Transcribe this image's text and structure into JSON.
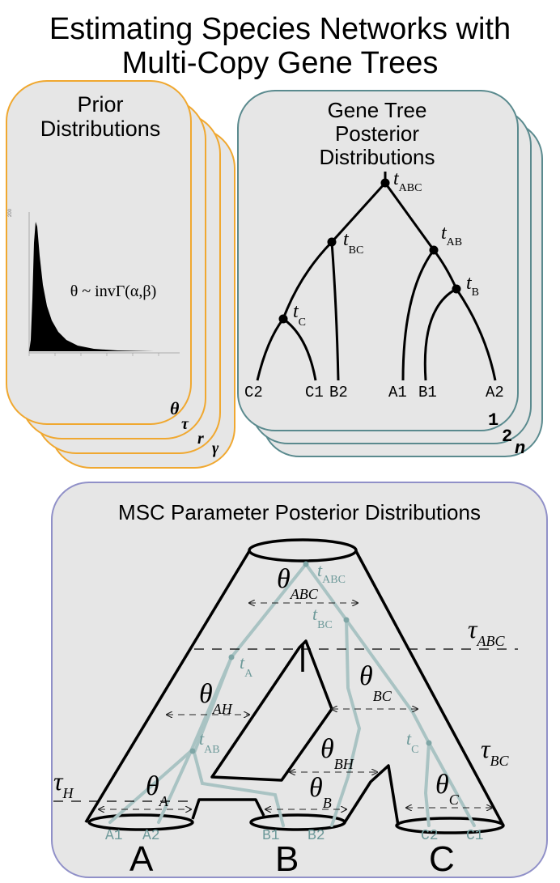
{
  "title": {
    "line1": "Estimating Species Networks with",
    "line2": "Multi-Copy Gene Trees"
  },
  "colors": {
    "prior_border": "#f0a830",
    "gene_border": "#5a8a8e",
    "msc_border": "#9090c8",
    "panel_fill": "#e6e6e6",
    "gene_lineage": "#a9c3c3",
    "gene_label": "#6e9a9a"
  },
  "prior": {
    "title_line1": "Prior",
    "title_line2": "Distributions",
    "formula": "θ ~ invΓ(α,β)",
    "ytick": "200",
    "params": [
      "θ",
      "τ",
      "r",
      "γ"
    ]
  },
  "gene": {
    "title_line1": "Gene Tree",
    "title_line2": "Posterior",
    "title_line3": "Distributions",
    "nodes": [
      {
        "t": "t",
        "sub": "ABC"
      },
      {
        "t": "t",
        "sub": "BC"
      },
      {
        "t": "t",
        "sub": "AB"
      },
      {
        "t": "t",
        "sub": "B"
      },
      {
        "t": "t",
        "sub": "C"
      }
    ],
    "tips": [
      "C2",
      "C1",
      "B2",
      "A1",
      "B1",
      "A2"
    ],
    "indices": [
      "1",
      "2",
      "n"
    ]
  },
  "msc": {
    "title": "MSC Parameter Posterior Distributions",
    "thetas": [
      {
        "t": "θ",
        "sub": "ABC"
      },
      {
        "t": "θ",
        "sub": "AH"
      },
      {
        "t": "θ",
        "sub": "BC"
      },
      {
        "t": "θ",
        "sub": "BH"
      },
      {
        "t": "θ",
        "sub": "A"
      },
      {
        "t": "θ",
        "sub": "B"
      },
      {
        "t": "θ",
        "sub": "C"
      }
    ],
    "taus": [
      {
        "t": "τ",
        "sub": "ABC"
      },
      {
        "t": "τ",
        "sub": "BC"
      },
      {
        "t": "τ",
        "sub": "H"
      }
    ],
    "gene_times": [
      {
        "t": "t",
        "sub": "ABC"
      },
      {
        "t": "t",
        "sub": "BC"
      },
      {
        "t": "t",
        "sub": "A"
      },
      {
        "t": "t",
        "sub": "AB"
      },
      {
        "t": "t",
        "sub": "C"
      }
    ],
    "samples": [
      "A1",
      "A2",
      "B1",
      "B2",
      "C2",
      "C1"
    ],
    "species": [
      "A",
      "B",
      "C"
    ]
  }
}
